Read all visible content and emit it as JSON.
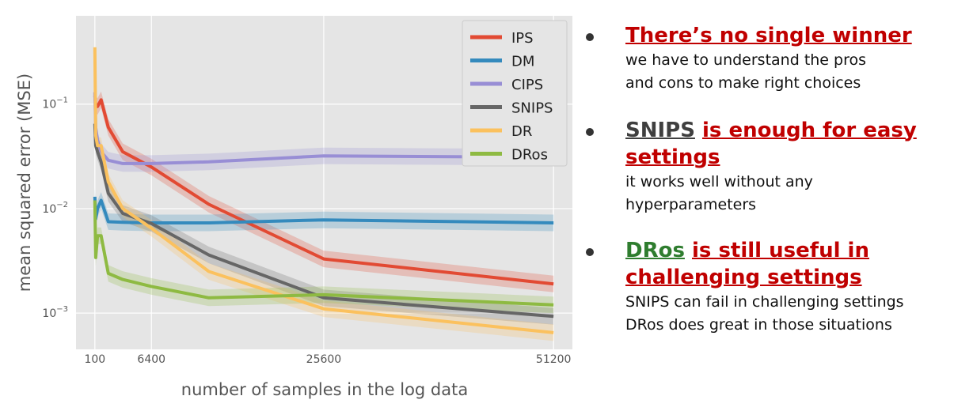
{
  "chart_data": {
    "type": "line",
    "xlabel": "number of samples in the log data",
    "ylabel": "mean squared error (MSE)",
    "x_ticks": [
      "100",
      "6400",
      "25600",
      "51200"
    ],
    "y_ticks": [
      "10^-1",
      "10^-2",
      "10^-3"
    ],
    "y_scale": "log",
    "ylim": [
      0.00045,
      0.7
    ],
    "xlim": [
      -2000,
      53300
    ],
    "grid": true,
    "legend_position": "top-right",
    "x": [
      100,
      200,
      400,
      800,
      1600,
      3200,
      6400,
      12800,
      25600,
      51200
    ],
    "series": [
      {
        "name": "IPS",
        "color": "#e24a33",
        "values": [
          0.12,
          0.1,
          0.095,
          0.11,
          0.06,
          0.035,
          0.025,
          0.011,
          0.0033,
          0.0019
        ]
      },
      {
        "name": "DM",
        "color": "#348abd",
        "values": [
          0.013,
          0.008,
          0.01,
          0.012,
          0.0075,
          0.0074,
          0.0073,
          0.0073,
          0.0078,
          0.0073
        ]
      },
      {
        "name": "CIPS",
        "color": "#988ed5",
        "values": [
          0.13,
          0.06,
          0.045,
          0.035,
          0.029,
          0.027,
          0.027,
          0.028,
          0.032,
          0.031
        ]
      },
      {
        "name": "SNIPS",
        "color": "#666666",
        "values": [
          0.065,
          0.04,
          0.035,
          0.028,
          0.014,
          0.009,
          0.0072,
          0.0036,
          0.0014,
          0.00093
        ]
      },
      {
        "name": "DR",
        "color": "#fbc15e",
        "values": [
          0.35,
          0.05,
          0.04,
          0.04,
          0.018,
          0.01,
          0.0065,
          0.0025,
          0.0011,
          0.00065
        ]
      },
      {
        "name": "DRos",
        "color": "#8eba42",
        "values": [
          0.012,
          0.0034,
          0.0055,
          0.0055,
          0.0024,
          0.0021,
          0.0018,
          0.0014,
          0.0015,
          0.0012
        ]
      }
    ]
  },
  "bullets": [
    {
      "title_parts": [
        {
          "text": "There’s no single winner",
          "style": "red"
        }
      ],
      "body": [
        "we have to understand the pros",
        "and cons to make right choices"
      ]
    },
    {
      "title_parts": [
        {
          "text": "SNIPS",
          "style": "gray"
        },
        {
          "text": " ",
          "style": "plain"
        },
        {
          "text": "is enough for easy settings",
          "style": "red"
        }
      ],
      "body": [
        "it works well without any",
        "hyperparameters"
      ]
    },
    {
      "title_parts": [
        {
          "text": "DRos",
          "style": "green"
        },
        {
          "text": " ",
          "style": "plain"
        },
        {
          "text": "is still useful in challenging settings",
          "style": "red"
        }
      ],
      "body": [
        "SNIPS can fail in challenging settings",
        "DRos does great in those situations"
      ]
    }
  ]
}
